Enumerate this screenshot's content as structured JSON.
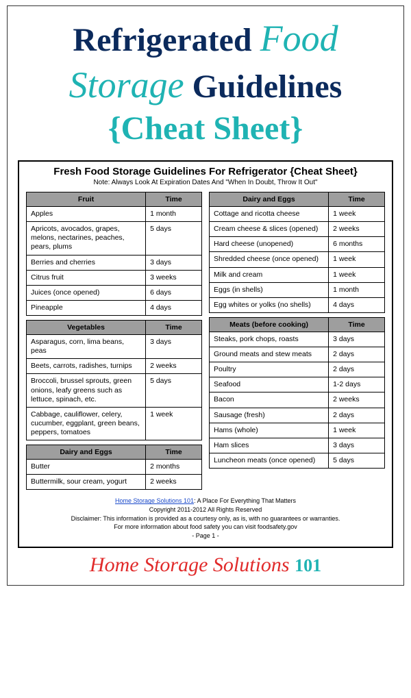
{
  "title": {
    "w1": "Refrigerated",
    "w2": "Food",
    "w3": "Storage",
    "w4": "Guidelines",
    "w5": "{Cheat Sheet}"
  },
  "sheet": {
    "heading": "Fresh Food Storage Guidelines For Refrigerator {Cheat Sheet}",
    "note": "Note: Always Look At Expiration Dates And \"When In Doubt, Throw It Out\""
  },
  "headers": {
    "time": "Time",
    "fruit": "Fruit",
    "veg": "Vegetables",
    "dairy": "Dairy and Eggs",
    "meats": "Meats (before cooking)"
  },
  "fruit": [
    {
      "item": "Apples",
      "time": "1 month"
    },
    {
      "item": "Apricots, avocados, grapes, melons, nectarines, peaches, pears, plums",
      "time": "5 days"
    },
    {
      "item": "Berries and cherries",
      "time": "3 days"
    },
    {
      "item": "Citrus fruit",
      "time": "3 weeks"
    },
    {
      "item": "Juices (once opened)",
      "time": "6 days"
    },
    {
      "item": "Pineapple",
      "time": "4 days"
    }
  ],
  "veg": [
    {
      "item": "Asparagus, corn, lima beans, peas",
      "time": "3 days"
    },
    {
      "item": "Beets, carrots, radishes, turnips",
      "time": "2 weeks"
    },
    {
      "item": "Broccoli, brussel sprouts, green onions, leafy greens such as lettuce, spinach, etc.",
      "time": "5 days"
    },
    {
      "item": "Cabbage, cauliflower, celery, cucumber, eggplant, green beans, peppers, tomatoes",
      "time": "1 week"
    }
  ],
  "dairy1": [
    {
      "item": "Butter",
      "time": "2 months"
    },
    {
      "item": "Buttermilk, sour cream, yogurt",
      "time": "2 weeks"
    }
  ],
  "dairy2": [
    {
      "item": "Cottage and ricotta cheese",
      "time": "1 week"
    },
    {
      "item": "Cream cheese & slices (opened)",
      "time": "2 weeks"
    },
    {
      "item": "Hard cheese (unopened)",
      "time": "6 months"
    },
    {
      "item": "Shredded cheese (once opened)",
      "time": "1 week"
    },
    {
      "item": "Milk and cream",
      "time": "1 week"
    },
    {
      "item": "Eggs (in shells)",
      "time": "1 month"
    },
    {
      "item": "Egg whites or yolks (no shells)",
      "time": "4 days"
    }
  ],
  "meats": [
    {
      "item": "Steaks, pork chops, roasts",
      "time": "3 days"
    },
    {
      "item": "Ground meats and stew meats",
      "time": "2 days"
    },
    {
      "item": "Poultry",
      "time": "2 days"
    },
    {
      "item": "Seafood",
      "time": "1-2 days"
    },
    {
      "item": "Bacon",
      "time": "2 weeks"
    },
    {
      "item": "Sausage (fresh)",
      "time": "2 days"
    },
    {
      "item": "Hams (whole)",
      "time": "1 week"
    },
    {
      "item": "Ham slices",
      "time": "3 days"
    },
    {
      "item": "Luncheon meats (once opened)",
      "time": "5 days"
    }
  ],
  "footer": {
    "link": "Home Storage Solutions 101",
    "tagline": ": A Place For Everything That Matters",
    "copyright": "Copyright 2011-2012 All Rights Reserved",
    "disclaimer": "Disclaimer: This information is provided as a courtesy only, as is, with no guarantees or warranties.",
    "more": "For more information about food safety you can visit foodsafety.gov",
    "page": "- Page 1 -"
  },
  "brand": {
    "text": "Home Storage Solutions",
    "num": "101"
  },
  "colors": {
    "teal": "#1fb3b3",
    "navy": "#0b2a5c",
    "red": "#e12b2b",
    "header_bg": "#9e9e9e"
  }
}
